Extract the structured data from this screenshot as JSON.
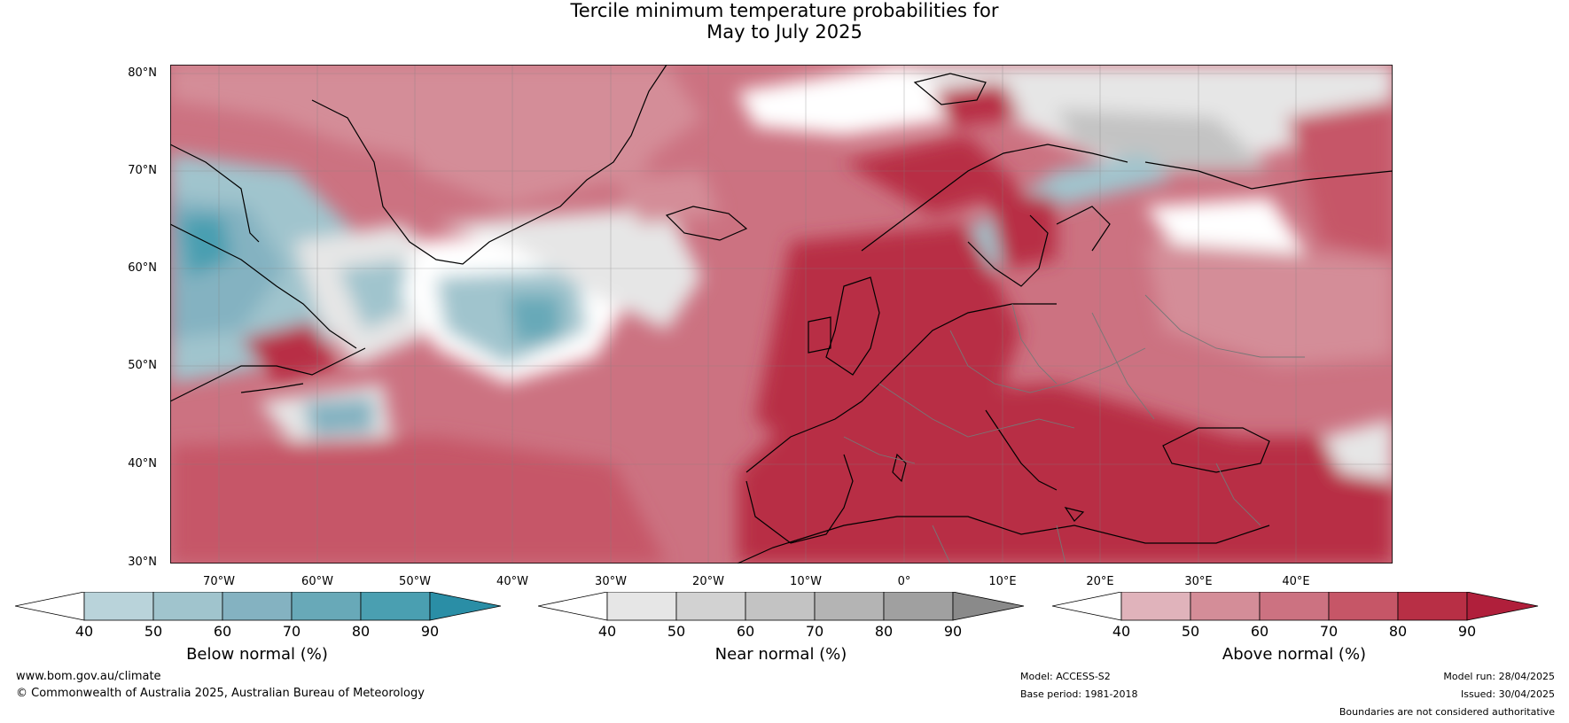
{
  "title": {
    "line1": "Tercile minimum temperature probabilities for",
    "line2": "May to July 2025"
  },
  "axes": {
    "lat_ticks": [
      "80°N",
      "70°N",
      "60°N",
      "50°N",
      "40°N",
      "30°N"
    ],
    "lon_ticks": [
      "70°W",
      "60°W",
      "50°W",
      "40°W",
      "30°W",
      "20°W",
      "10°W",
      "0°",
      "10°E",
      "20°E",
      "30°E",
      "40°E"
    ],
    "lat_range": [
      30,
      80
    ],
    "lon_range": [
      -80,
      50
    ]
  },
  "colors": {
    "below": [
      "#b9d3da",
      "#a0c4cd",
      "#84b2c1",
      "#68a9b8",
      "#4a9fb1",
      "#2a8ea6"
    ],
    "near": [
      "#e6e6e6",
      "#d2d2d2",
      "#c3c3c3",
      "#b4b4b4",
      "#a0a0a0",
      "#8a8a8a"
    ],
    "above": [
      "#e0b3bb",
      "#d48d98",
      "#cc7281",
      "#c65667",
      "#b82f45",
      "#b01f3b"
    ],
    "land_outline": "#000000",
    "border": "#777777"
  },
  "legends": [
    {
      "title": "Below normal (%)",
      "ticks": [
        "40",
        "50",
        "60",
        "70",
        "80",
        "90"
      ]
    },
    {
      "title": "Near normal (%)",
      "ticks": [
        "40",
        "50",
        "60",
        "70",
        "80",
        "90"
      ]
    },
    {
      "title": "Above normal (%)",
      "ticks": [
        "40",
        "50",
        "60",
        "70",
        "80",
        "90"
      ]
    }
  ],
  "footer": {
    "website": "www.bom.gov.au/climate",
    "copyright": "© Commonwealth of Australia 2025, Australian Bureau of Meteorology",
    "model": "Model: ACCESS-S2",
    "base_period": "Base period: 1981-2018",
    "model_run": "Model run: 28/04/2025",
    "issued": "Issued: 30/04/2025",
    "disclaimer": "Boundaries are not considered authoritative"
  }
}
